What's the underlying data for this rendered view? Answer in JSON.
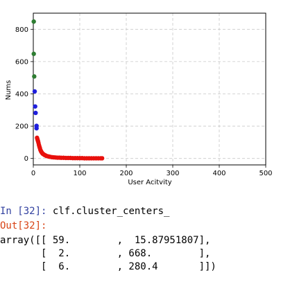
{
  "chart_data": {
    "type": "scatter",
    "title": "",
    "xlabel": "User Acitvity",
    "ylabel": "Nums",
    "xlim": [
      0,
      500
    ],
    "ylim": [
      -40,
      900
    ],
    "xticks": [
      0,
      100,
      200,
      300,
      400,
      500
    ],
    "yticks": [
      0,
      200,
      400,
      600,
      800
    ],
    "grid": true,
    "series": [
      {
        "color": "#2e7d32",
        "points": [
          [
            1,
            848
          ],
          [
            1,
            648
          ],
          [
            2,
            508
          ]
        ]
      },
      {
        "color": "#1f1fdd",
        "points": [
          [
            3,
            415
          ],
          [
            4,
            322
          ],
          [
            5,
            282
          ],
          [
            7,
            202
          ],
          [
            7,
            187
          ]
        ]
      },
      {
        "color": "#e8100c",
        "points": [
          [
            8,
            128
          ],
          [
            9,
            118
          ],
          [
            10,
            108
          ],
          [
            11,
            98
          ],
          [
            12,
            85
          ],
          [
            13,
            75
          ],
          [
            14,
            65
          ],
          [
            15,
            55
          ],
          [
            16,
            48
          ],
          [
            17,
            42
          ],
          [
            18,
            38
          ],
          [
            19,
            34
          ],
          [
            20,
            30
          ],
          [
            22,
            26
          ],
          [
            24,
            22
          ],
          [
            26,
            19
          ],
          [
            28,
            16
          ],
          [
            30,
            14
          ],
          [
            33,
            12
          ],
          [
            36,
            10
          ],
          [
            40,
            8
          ],
          [
            44,
            7
          ],
          [
            48,
            6
          ],
          [
            52,
            5
          ],
          [
            56,
            5
          ],
          [
            60,
            4
          ],
          [
            65,
            4
          ],
          [
            70,
            3
          ],
          [
            75,
            3
          ],
          [
            80,
            3
          ],
          [
            85,
            2
          ],
          [
            90,
            2
          ],
          [
            95,
            2
          ],
          [
            100,
            2
          ],
          [
            105,
            2
          ],
          [
            110,
            1
          ],
          [
            115,
            1
          ],
          [
            120,
            1
          ],
          [
            125,
            1
          ],
          [
            130,
            1
          ],
          [
            135,
            1
          ],
          [
            140,
            1
          ],
          [
            145,
            1
          ],
          [
            148,
            1
          ]
        ]
      }
    ]
  },
  "notebook": {
    "in_prompt": "In [32]:",
    "in_code": "clf.cluster_centers_",
    "out_prompt": "Out[32]:",
    "out_lines": [
      "array([[ 59.        ,  15.87951807],",
      "       [  2.        , 668.        ],",
      "       [  6.        , 280.4       ]])"
    ]
  }
}
